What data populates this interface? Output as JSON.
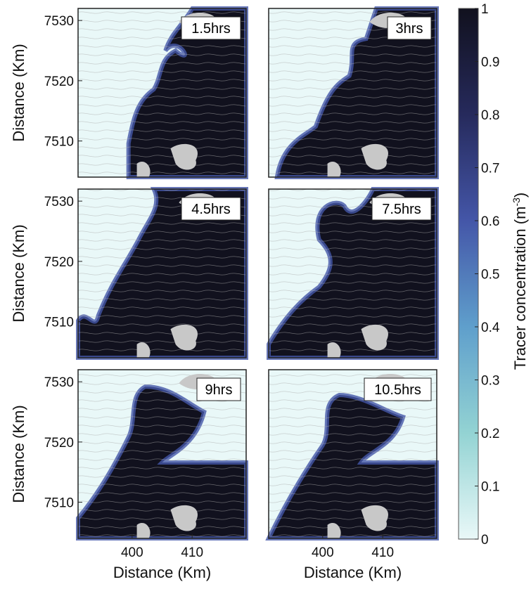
{
  "chart_data": {
    "type": "heatmap",
    "description_kind": "tracer concentration maps with streamlines, 6 time snapshots",
    "panels": [
      {
        "label": "1.5hrs"
      },
      {
        "label": "3hrs"
      },
      {
        "label": "4.5hrs"
      },
      {
        "label": "7.5hrs"
      },
      {
        "label": "9hrs"
      },
      {
        "label": "10.5hrs"
      }
    ],
    "xlabel": "Distance (Km)",
    "ylabel": "Distance (Km)",
    "x_ticks": [
      400,
      410
    ],
    "y_ticks": [
      7510,
      7520,
      7530
    ],
    "xlim": [
      391,
      419
    ],
    "ylim": [
      7504,
      7532
    ],
    "colorbar": {
      "label": "Tracer concentration (m",
      "label_exp": "-3",
      "label_close": ")",
      "ticks": [
        "0",
        "0.1",
        "0.2",
        "0.3",
        "0.4",
        "0.5",
        "0.6",
        "0.7",
        "0.8",
        "0.9",
        "1"
      ],
      "range": [
        0,
        1
      ],
      "colors": [
        "#e9f8f8",
        "#93d3d3",
        "#5f9fcc",
        "#4456a8",
        "#262a5c",
        "#11111e"
      ]
    },
    "land_color": "#c8c8c8",
    "streamline_color": "#9a9a9a"
  }
}
